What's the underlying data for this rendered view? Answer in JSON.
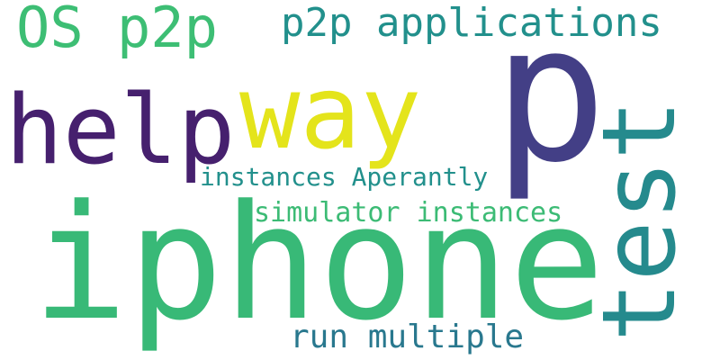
{
  "word_cloud": {
    "words": [
      {
        "text": "OS p2p",
        "color": "#3DBE74"
      },
      {
        "text": "p2p applications",
        "color": "#22908C"
      },
      {
        "text": "way",
        "color": "#E4E41B"
      },
      {
        "text": "p",
        "color": "#433F86"
      },
      {
        "text": "help",
        "color": "#46206E"
      },
      {
        "text": "test",
        "color": "#258A8D"
      },
      {
        "text": "instances Aperantly",
        "color": "#22908C"
      },
      {
        "text": "simulator instances",
        "color": "#3CBB75"
      },
      {
        "text": "iphone",
        "color": "#38B977"
      },
      {
        "text": "run multiple",
        "color": "#29788E"
      }
    ]
  }
}
